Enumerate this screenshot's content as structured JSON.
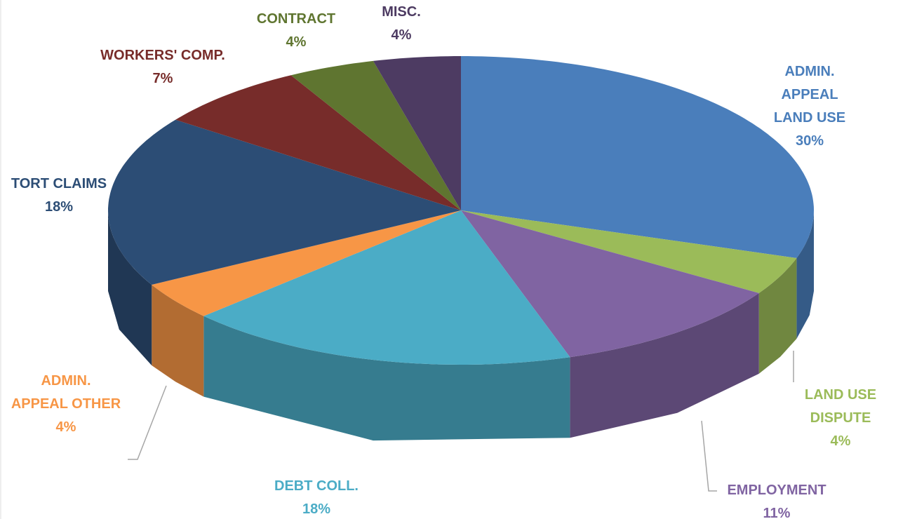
{
  "chart_data": {
    "type": "pie3d",
    "categories": [
      "ADMIN. APPEAL\nLAND USE",
      "LAND USE DISPUTE",
      "EMPLOYMENT",
      "DEBT COLL.",
      "ADMIN.\nAPPEAL OTHER",
      "TORT CLAIMS",
      "WORKERS' COMP.",
      "CONTRACT",
      "MISC."
    ],
    "values": [
      30,
      4,
      11,
      18,
      4,
      18,
      7,
      4,
      4
    ],
    "value_labels": [
      "30%",
      "4%",
      "11%",
      "18%",
      "4%",
      "18%",
      "7%",
      "4%",
      "4%"
    ],
    "colors": [
      "#4a7ebb",
      "#9bbb59",
      "#8064a2",
      "#4bacc6",
      "#f79646",
      "#2c4d75",
      "#772c2a",
      "#5f7530",
      "#4d3b62"
    ]
  }
}
